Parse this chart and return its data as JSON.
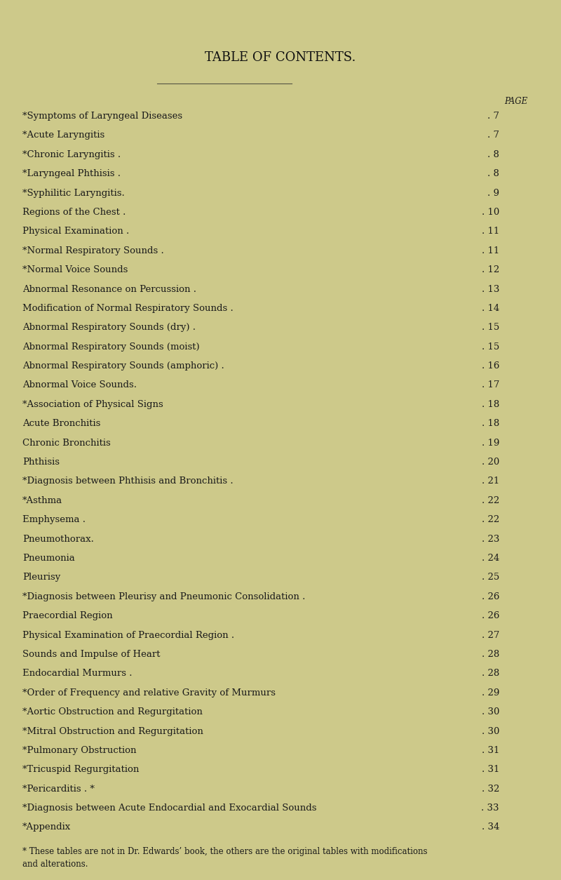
{
  "title": "TABLE OF CONTENTS.",
  "bg_color": "#cdc98a",
  "text_color": "#1a1a1a",
  "title_color": "#111111",
  "page_label": "PAGE",
  "entries": [
    {
      "text": "*Symptoms of Laryngeal Diseases",
      "page": "7",
      "starred": true
    },
    {
      "text": "*Acute Laryngitis",
      "page": "7",
      "starred": true
    },
    {
      "text": "*Chronic Laryngitis .",
      "page": "8",
      "starred": true
    },
    {
      "text": "*Laryngeal Phthisis .",
      "page": "8",
      "starred": true
    },
    {
      "text": "*Syphilitic Laryngitis.",
      "page": "9",
      "starred": true
    },
    {
      "text": "Regions of the Chest .",
      "page": "10",
      "starred": false
    },
    {
      "text": "Physical Examination .",
      "page": "11",
      "starred": false
    },
    {
      "text": "*Normal Respiratory Sounds .",
      "page": "11",
      "starred": true
    },
    {
      "text": "*Normal Voice Sounds",
      "page": "12",
      "starred": true
    },
    {
      "text": "Abnormal Resonance on Percussion .",
      "page": "13",
      "starred": false
    },
    {
      "text": "Modification of Normal Respiratory Sounds .",
      "page": "14",
      "starred": false
    },
    {
      "text": "Abnormal Respiratory Sounds (dry) .",
      "page": "15",
      "starred": false
    },
    {
      "text": "Abnormal Respiratory Sounds (moist)",
      "page": "15",
      "starred": false
    },
    {
      "text": "Abnormal Respiratory Sounds (amphoric) .",
      "page": "16",
      "starred": false
    },
    {
      "text": "Abnormal Voice Sounds.",
      "page": "17",
      "starred": false
    },
    {
      "text": "*Association of Physical Signs",
      "page": "18",
      "starred": true
    },
    {
      "text": "Acute Bronchitis",
      "page": "18",
      "starred": false
    },
    {
      "text": "Chronic Bronchitis",
      "page": "19",
      "starred": false
    },
    {
      "text": "Phthisis",
      "page": "20",
      "starred": false
    },
    {
      "text": "*Diagnosis between Phthisis and Bronchitis .",
      "page": "21",
      "starred": true
    },
    {
      "text": "*Asthma",
      "page": "22",
      "starred": true
    },
    {
      "text": "Emphysema .",
      "page": "22",
      "starred": false
    },
    {
      "text": "Pneumothorax.",
      "page": "23",
      "starred": false
    },
    {
      "text": "Pneumonia",
      "page": "24",
      "starred": false
    },
    {
      "text": "Pleurisy",
      "page": "25",
      "starred": false
    },
    {
      "text": "*Diagnosis between Pleurisy and Pneumonic Consolidation .",
      "page": "26",
      "starred": true
    },
    {
      "text": "Praecordial Region",
      "page": "26",
      "starred": false
    },
    {
      "text": "Physical Examination of Praecordial Region .",
      "page": "27",
      "starred": false
    },
    {
      "text": "Sounds and Impulse of Heart",
      "page": "28",
      "starred": false
    },
    {
      "text": "Endocardial Murmurs .",
      "page": "28",
      "starred": false
    },
    {
      "text": "*Order of Frequency and relative Gravity of Murmurs",
      "page": "29",
      "starred": true
    },
    {
      "text": "*Aortic Obstruction and Regurgitation",
      "page": "30",
      "starred": true
    },
    {
      "text": "*Mitral Obstruction and Regurgitation",
      "page": "30",
      "starred": true
    },
    {
      "text": "*Pulmonary Obstruction",
      "page": "31",
      "starred": true
    },
    {
      "text": "*Tricuspid Regurgitation",
      "page": "31",
      "starred": true
    },
    {
      "text": "*Pericarditis . *",
      "page": "32",
      "starred": true
    },
    {
      "text": "*Diagnosis between Acute Endocardial and Exocardial Sounds",
      "page": "33",
      "starred": true
    },
    {
      "text": "*Appendix",
      "page": "34",
      "starred": true
    }
  ],
  "footnote": "* These tables are not in Dr. Edwards’ book, the others are the original tables with modifications\nand alterations.",
  "title_fontsize": 13,
  "entry_fontsize": 9.5,
  "page_fontsize": 8.5,
  "footnote_fontsize": 8.5
}
